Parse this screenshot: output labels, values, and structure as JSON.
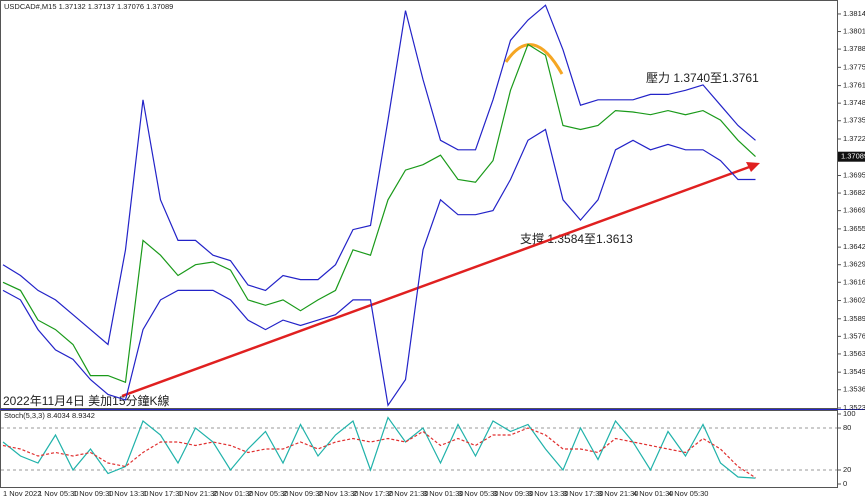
{
  "chart_data": [
    {
      "type": "line",
      "title": "USDCAD#,M15 1.37132 1.37137 1.37076 1.37089",
      "annotations": [
        "壓力 1.3740至1.3761",
        "支撐 1.3584至1.3613",
        "2022年11月4日 美加15分鐘K線"
      ],
      "categories": [
        "1 Nov 2022",
        null,
        "1 Nov 05:30",
        null,
        "1 Nov 09:30",
        null,
        "1 Nov 13:30",
        null,
        "1 Nov 17:30",
        null,
        "1 Nov 21:30",
        null,
        "2 Nov 01:30",
        null,
        "2 Nov 05:30",
        null,
        "2 Nov 09:30",
        null,
        "2 Nov 13:30",
        null,
        "2 Nov 17:30",
        null,
        "2 Nov 21:30",
        null,
        "3 Nov 01:30",
        null,
        "3 Nov 05:30",
        null,
        "3 Nov 09:30",
        null,
        "3 Nov 13:30",
        null,
        "3 Nov 17:30",
        null,
        "3 Nov 21:30",
        null,
        "4 Nov 01:30",
        null,
        "4 Nov 05:30",
        null,
        null,
        null,
        null,
        null
      ],
      "series": [
        {
          "color": "#1a9a1a",
          "values": [
            1.3616,
            1.361,
            1.3588,
            1.3581,
            1.357,
            1.3547,
            1.3547,
            1.3542,
            1.3647,
            1.3636,
            1.3621,
            1.3629,
            1.3631,
            1.3625,
            1.3603,
            1.3599,
            1.3603,
            1.3595,
            1.3603,
            1.361,
            1.364,
            1.3636,
            1.3677,
            1.3699,
            1.3703,
            1.371,
            1.3692,
            1.369,
            1.3706,
            1.3758,
            1.3792,
            1.3784,
            1.3732,
            1.3729,
            1.3732,
            1.3743,
            1.3742,
            1.374,
            1.3743,
            1.374,
            1.3743,
            1.3736,
            1.3721,
            1.3709
          ]
        },
        {
          "color": "#2323c8",
          "values": [
            1.3629,
            1.3621,
            1.361,
            1.3603,
            1.3592,
            1.3581,
            1.357,
            1.364,
            1.3751,
            1.3677,
            1.3647,
            1.3647,
            1.3636,
            1.3632,
            1.3614,
            1.361,
            1.3621,
            1.3618,
            1.3618,
            1.3629,
            1.3655,
            1.3658,
            1.3736,
            1.3817,
            1.3766,
            1.3721,
            1.3714,
            1.3714,
            1.3751,
            1.3795,
            1.381,
            1.3821,
            1.3788,
            1.3747,
            1.3751,
            1.3751,
            1.3751,
            1.3755,
            1.3755,
            1.3758,
            1.3762,
            1.3747,
            1.3732,
            1.3721
          ]
        },
        {
          "color": "#2323c8",
          "values": [
            1.361,
            1.3603,
            1.3581,
            1.3566,
            1.3559,
            1.3544,
            1.3533,
            1.3529,
            1.3581,
            1.3603,
            1.361,
            1.361,
            1.361,
            1.3603,
            1.3588,
            1.3581,
            1.3588,
            1.3584,
            1.3588,
            1.3592,
            1.3603,
            1.3603,
            1.3525,
            1.3544,
            1.364,
            1.3677,
            1.3666,
            1.3666,
            1.3669,
            1.3692,
            1.3721,
            1.3729,
            1.3677,
            1.3662,
            1.3677,
            1.3714,
            1.3721,
            1.3714,
            1.3718,
            1.3714,
            1.3714,
            1.3706,
            1.3692,
            1.3692
          ]
        }
      ],
      "ylim": [
        1.3523,
        1.38226
      ],
      "yticks": [
        1.38145,
        1.38015,
        1.37885,
        {
          "value": 1.3775,
          "label": "1.37750"
        },
        1.37615,
        1.37485,
        1.37355,
        {
          "value": 1.3722,
          "label": "1.37220"
        },
        {
          "value": 1.3695,
          "label": "1.36950"
        },
        {
          "value": 1.3682,
          "label": "1.36820"
        },
        {
          "value": 1.3669,
          "label": "1.36690"
        },
        1.36555,
        {
          "value": 1.3642,
          "label": "1.36420"
        },
        {
          "value": 1.3629,
          "label": "1.36290"
        },
        {
          "value": 1.3616,
          "label": "1.36160"
        },
        1.36025,
        {
          "value": 1.3589,
          "label": "1.35890"
        },
        {
          "value": 1.3576,
          "label": "1.35760"
        },
        {
          "value": 1.3563,
          "label": "1.35630"
        },
        1.35495,
        1.35365,
        {
          "value": 1.3523,
          "label": "1.35230"
        }
      ],
      "last_price": 1.37089
    },
    {
      "type": "line",
      "title": "Stoch(5,3,3) 8.4034 8.9342",
      "series": [
        {
          "color": "#20b2aa",
          "values": [
            60,
            40,
            30,
            70,
            20,
            50,
            15,
            25,
            90,
            70,
            30,
            80,
            60,
            20,
            50,
            75,
            30,
            85,
            40,
            70,
            90,
            20,
            95,
            60,
            80,
            30,
            85,
            40,
            90,
            75,
            85,
            50,
            20,
            80,
            35,
            90,
            60,
            20,
            75,
            40,
            85,
            30,
            10,
            8.4034
          ]
        },
        {
          "color": "#e03030",
          "dashed": true,
          "values": [
            55,
            50,
            40,
            45,
            40,
            45,
            30,
            25,
            45,
            60,
            60,
            55,
            60,
            55,
            45,
            50,
            50,
            60,
            50,
            60,
            65,
            60,
            65,
            60,
            75,
            55,
            65,
            55,
            70,
            70,
            80,
            70,
            50,
            50,
            45,
            65,
            60,
            55,
            50,
            45,
            65,
            50,
            25,
            8.9342
          ]
        }
      ],
      "ylim": [
        0,
        100
      ],
      "yticks": [
        100,
        80,
        20,
        0
      ]
    }
  ]
}
